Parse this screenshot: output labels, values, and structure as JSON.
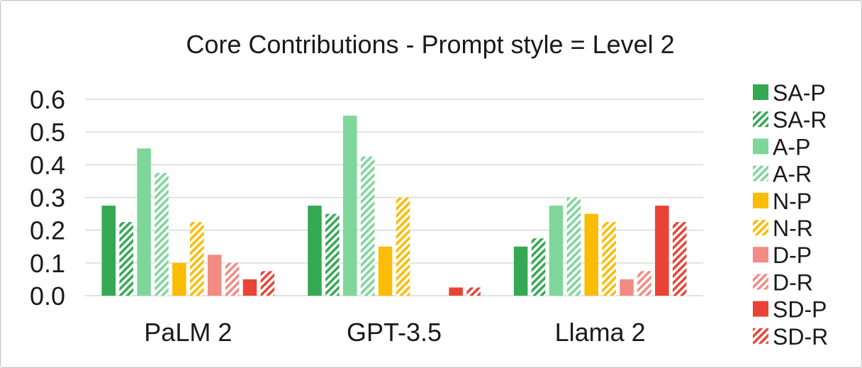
{
  "chart_data": {
    "type": "bar",
    "title": "Core Contributions - Prompt style = Level 2",
    "xlabel": "",
    "ylabel": "",
    "ylim": [
      0,
      0.6
    ],
    "yticks": [
      "0.0",
      "0.1",
      "0.2",
      "0.3",
      "0.4",
      "0.5",
      "0.6"
    ],
    "grid": true,
    "legend_position": "right",
    "categories": [
      "PaLM 2",
      "GPT-3.5",
      "Llama 2"
    ],
    "series": [
      {
        "name": "SA-P",
        "values": [
          0.275,
          0.275,
          0.15
        ],
        "color": "#34a853",
        "pattern": "solid"
      },
      {
        "name": "SA-R",
        "values": [
          0.225,
          0.25,
          0.175
        ],
        "color": "#34a853",
        "pattern": "hatch"
      },
      {
        "name": "A-P",
        "values": [
          0.45,
          0.55,
          0.275
        ],
        "color": "#7fd69a",
        "pattern": "solid"
      },
      {
        "name": "A-R",
        "values": [
          0.375,
          0.425,
          0.3
        ],
        "color": "#7fd69a",
        "pattern": "hatch"
      },
      {
        "name": "N-P",
        "values": [
          0.1,
          0.15,
          0.25
        ],
        "color": "#fbbc04",
        "pattern": "solid"
      },
      {
        "name": "N-R",
        "values": [
          0.225,
          0.3,
          0.225
        ],
        "color": "#fbbc04",
        "pattern": "hatch"
      },
      {
        "name": "D-P",
        "values": [
          0.125,
          0.0,
          0.05
        ],
        "color": "#f28b82",
        "pattern": "solid"
      },
      {
        "name": "D-R",
        "values": [
          0.1,
          0.0,
          0.075
        ],
        "color": "#f28b82",
        "pattern": "hatch"
      },
      {
        "name": "SD-P",
        "values": [
          0.05,
          0.025,
          0.275
        ],
        "color": "#ea4335",
        "pattern": "solid"
      },
      {
        "name": "SD-R",
        "values": [
          0.075,
          0.025,
          0.225
        ],
        "color": "#ea4335",
        "pattern": "hatch"
      }
    ]
  }
}
